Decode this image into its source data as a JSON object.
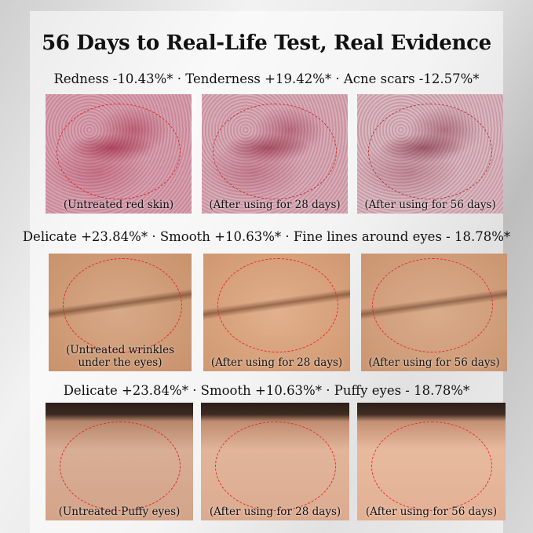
{
  "title": "56 Days to Real-Life Test, Real Evidence",
  "rows": [
    {
      "subtitle": "Redness -10.43%* · Tenderness +19.42%* · Acne scars -12.57%*",
      "captions": [
        "(Untreated red skin)",
        "(After using for 28 days)",
        "(After using for 56 days)"
      ]
    },
    {
      "subtitle": "Delicate +23.84%* · Smooth +10.63%* · Fine lines around eyes - 18.78%*",
      "captions": [
        "(Untreated wrinkles under the eyes)",
        "(After using for 28 days)",
        "(After using for 56 days)"
      ]
    },
    {
      "subtitle": "Delicate +23.84%* · Smooth +10.63%* · Puffy eyes - 18.78%*",
      "captions": [
        "(Untreated Puffy eyes)",
        "(After using for 28 days)",
        "(After using for 56 days)"
      ]
    }
  ],
  "colors": {
    "circle": "#e3262a"
  }
}
